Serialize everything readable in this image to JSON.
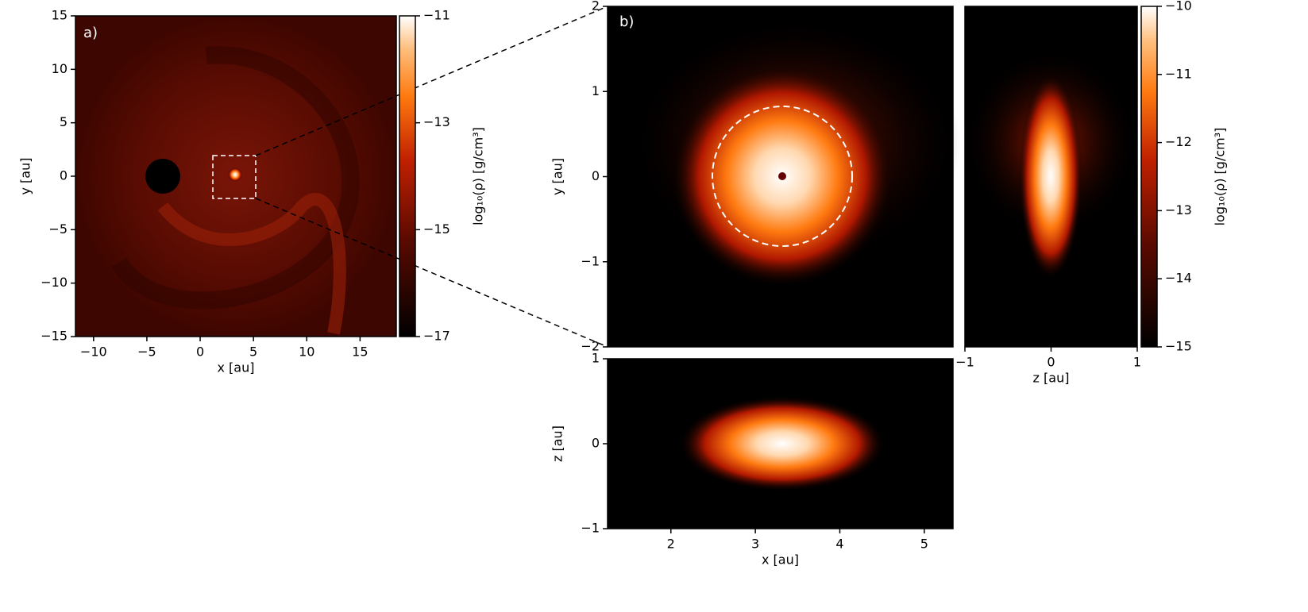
{
  "chart_data": [
    {
      "type": "heatmap",
      "label": "a)",
      "xlabel": "x [au]",
      "ylabel": "y [au]",
      "xlim": [
        -11.7,
        18.4
      ],
      "ylim": [
        -15,
        15
      ],
      "xticks": [
        {
          "value": -10,
          "label": "−10"
        },
        {
          "value": -5,
          "label": "−5"
        },
        0,
        5,
        10,
        15
      ],
      "yticks": [
        {
          "value": -15,
          "label": "−15"
        },
        {
          "value": -10,
          "label": "−10"
        },
        {
          "value": -5,
          "label": "−5"
        },
        0,
        5,
        10,
        15
      ],
      "colorbar": {
        "label": "log₁₀(ρ) [g/cm³]",
        "lim": [
          -17,
          -11
        ],
        "ticks": [
          {
            "value": -11,
            "label": "−11"
          },
          {
            "value": -13,
            "label": "−13"
          },
          {
            "value": -15,
            "label": "−15"
          },
          {
            "value": -17,
            "label": "−17"
          }
        ]
      }
    },
    {
      "type": "heatmap",
      "label": "b)",
      "ylabel": "y [au]",
      "ylim": [
        -2,
        2
      ],
      "yticks": [
        {
          "value": -2,
          "label": "−2"
        },
        {
          "value": -1,
          "label": "−1"
        },
        0,
        1,
        2
      ],
      "colorbar": {
        "label": "log₁₀(ρ) [g/cm³]",
        "lim": [
          -15,
          -10
        ],
        "ticks": [
          {
            "value": -10,
            "label": "−10"
          },
          {
            "value": -11,
            "label": "−11"
          },
          {
            "value": -12,
            "label": "−12"
          },
          {
            "value": -13,
            "label": "−13"
          },
          {
            "value": -14,
            "label": "−14"
          },
          {
            "value": -15,
            "label": "−15"
          }
        ]
      }
    },
    {
      "type": "heatmap",
      "xlabel": "x [au]",
      "ylabel": "z [au]",
      "xlim": [
        1.25,
        5.34
      ],
      "ylim": [
        -1,
        1
      ],
      "xticks": [
        2,
        3,
        4,
        5
      ],
      "yticks": [
        {
          "value": -1,
          "label": "−1"
        },
        0,
        1
      ]
    },
    {
      "type": "heatmap",
      "xlabel": "z [au]",
      "xlim": [
        -1,
        1
      ],
      "xticks": [
        {
          "value": -1,
          "label": "−1"
        },
        0,
        1
      ]
    }
  ]
}
